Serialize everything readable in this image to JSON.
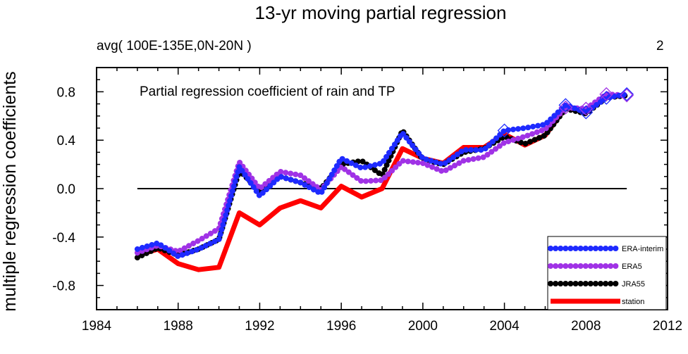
{
  "chart_data": {
    "type": "line",
    "title": "13-yr moving partial regression",
    "subtitle_left": "avg( 100E-135E,0N-20N )",
    "subtitle_right": "2",
    "annotation": "Partial regression coefficient of rain and TP",
    "xlabel": "",
    "ylabel": "multiple regression coefficients",
    "xlim": [
      1984,
      2012
    ],
    "ylim": [
      -1.0,
      1.0
    ],
    "xticks": [
      1984,
      1988,
      1992,
      1996,
      2000,
      2004,
      2008,
      2012
    ],
    "xtick_labels": [
      "1984",
      "1988",
      "1992",
      "1996",
      "2000",
      "2004",
      "2008",
      "2012"
    ],
    "yticks": [
      -0.8,
      -0.4,
      0.0,
      0.4,
      0.8
    ],
    "ytick_labels": [
      "-0.8",
      "-0.4",
      "0.0",
      "0.4",
      "0.8"
    ],
    "zero_line": [
      1986,
      2010
    ],
    "x": [
      1986,
      1987,
      1988,
      1989,
      1990,
      1991,
      1992,
      1993,
      1994,
      1995,
      1996,
      1997,
      1998,
      1999,
      2000,
      2001,
      2002,
      2003,
      2004,
      2005,
      2006,
      2007,
      2008,
      2009,
      2010
    ],
    "legend_position": "bottom-right",
    "series": [
      {
        "name": "station",
        "color": "#ff0000",
        "style": "solid",
        "values": [
          -0.55,
          -0.5,
          -0.62,
          -0.67,
          -0.65,
          -0.2,
          -0.3,
          -0.16,
          -0.1,
          -0.16,
          0.02,
          -0.07,
          0.0,
          0.33,
          0.25,
          0.21,
          0.34,
          0.34,
          0.45,
          0.36,
          0.44,
          0.67,
          0.65,
          0.76,
          0.77
        ]
      },
      {
        "name": "JRA55",
        "color": "#000000",
        "style": "dots",
        "values": [
          -0.57,
          -0.49,
          -0.55,
          -0.5,
          -0.42,
          0.15,
          -0.02,
          0.1,
          0.05,
          0.0,
          0.2,
          0.23,
          0.11,
          0.48,
          0.24,
          0.2,
          0.3,
          0.33,
          0.43,
          0.37,
          0.44,
          0.66,
          0.62,
          0.75,
          0.77
        ]
      },
      {
        "name": "ERA5",
        "color": "#a032e6",
        "style": "dots",
        "values": [
          -0.53,
          -0.47,
          -0.52,
          -0.43,
          -0.33,
          0.22,
          0.0,
          0.14,
          0.11,
          -0.01,
          0.18,
          0.06,
          0.07,
          0.23,
          0.21,
          0.14,
          0.23,
          0.26,
          0.38,
          0.43,
          0.49,
          0.67,
          0.66,
          0.78,
          0.77
        ]
      },
      {
        "name": "ERA-Interim",
        "color": "#1e2aff",
        "style": "dots",
        "values": [
          -0.5,
          -0.45,
          -0.56,
          -0.5,
          -0.42,
          0.18,
          -0.06,
          0.1,
          0.05,
          -0.04,
          0.25,
          0.17,
          0.21,
          0.46,
          0.25,
          0.2,
          0.32,
          0.32,
          0.48,
          0.5,
          0.53,
          0.69,
          0.63,
          0.75,
          0.78
        ]
      }
    ],
    "diamond_markers": {
      "ERA-Interim": [
        2004,
        2007,
        2008,
        2009,
        2010
      ],
      "ERA5": [
        2007,
        2008,
        2009,
        2010
      ]
    },
    "legend_entries": [
      "ERA-interim",
      "ERA5",
      "JRA55",
      "station"
    ]
  }
}
